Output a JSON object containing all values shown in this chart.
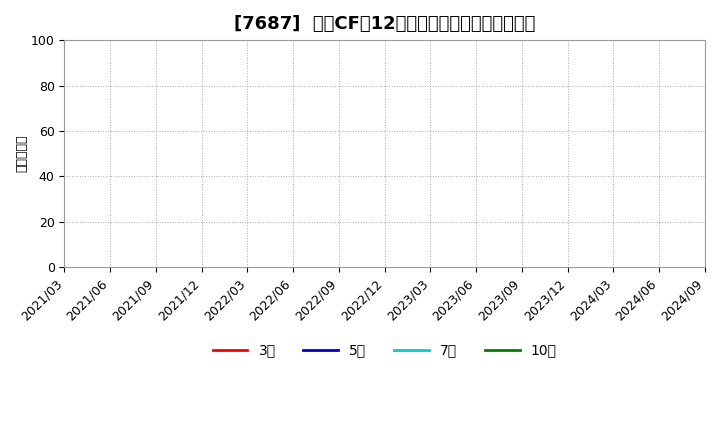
{
  "title": "[7687]  投賄CFだ12か月移動合計の平均値の推移",
  "ylabel": "（百万円）",
  "ylim": [
    0,
    100
  ],
  "yticks": [
    0,
    20,
    40,
    60,
    80,
    100
  ],
  "x_tick_labels": [
    "2021/03",
    "2021/06",
    "2021/09",
    "2021/12",
    "2022/03",
    "2022/06",
    "2022/09",
    "2022/12",
    "2023/03",
    "2023/06",
    "2023/09",
    "2023/12",
    "2024/03",
    "2024/06",
    "2024/09"
  ],
  "legend_entries": [
    {
      "label": "3年",
      "color": "#ff0000"
    },
    {
      "label": "5年",
      "color": "#0000cc"
    },
    {
      "label": "7年",
      "color": "#00cccc"
    },
    {
      "label": "10年",
      "color": "#008000"
    }
  ],
  "background_color": "#ffffff",
  "grid_color": "#aaaaaa",
  "title_fontsize": 13,
  "axis_fontsize": 9,
  "legend_fontsize": 10
}
